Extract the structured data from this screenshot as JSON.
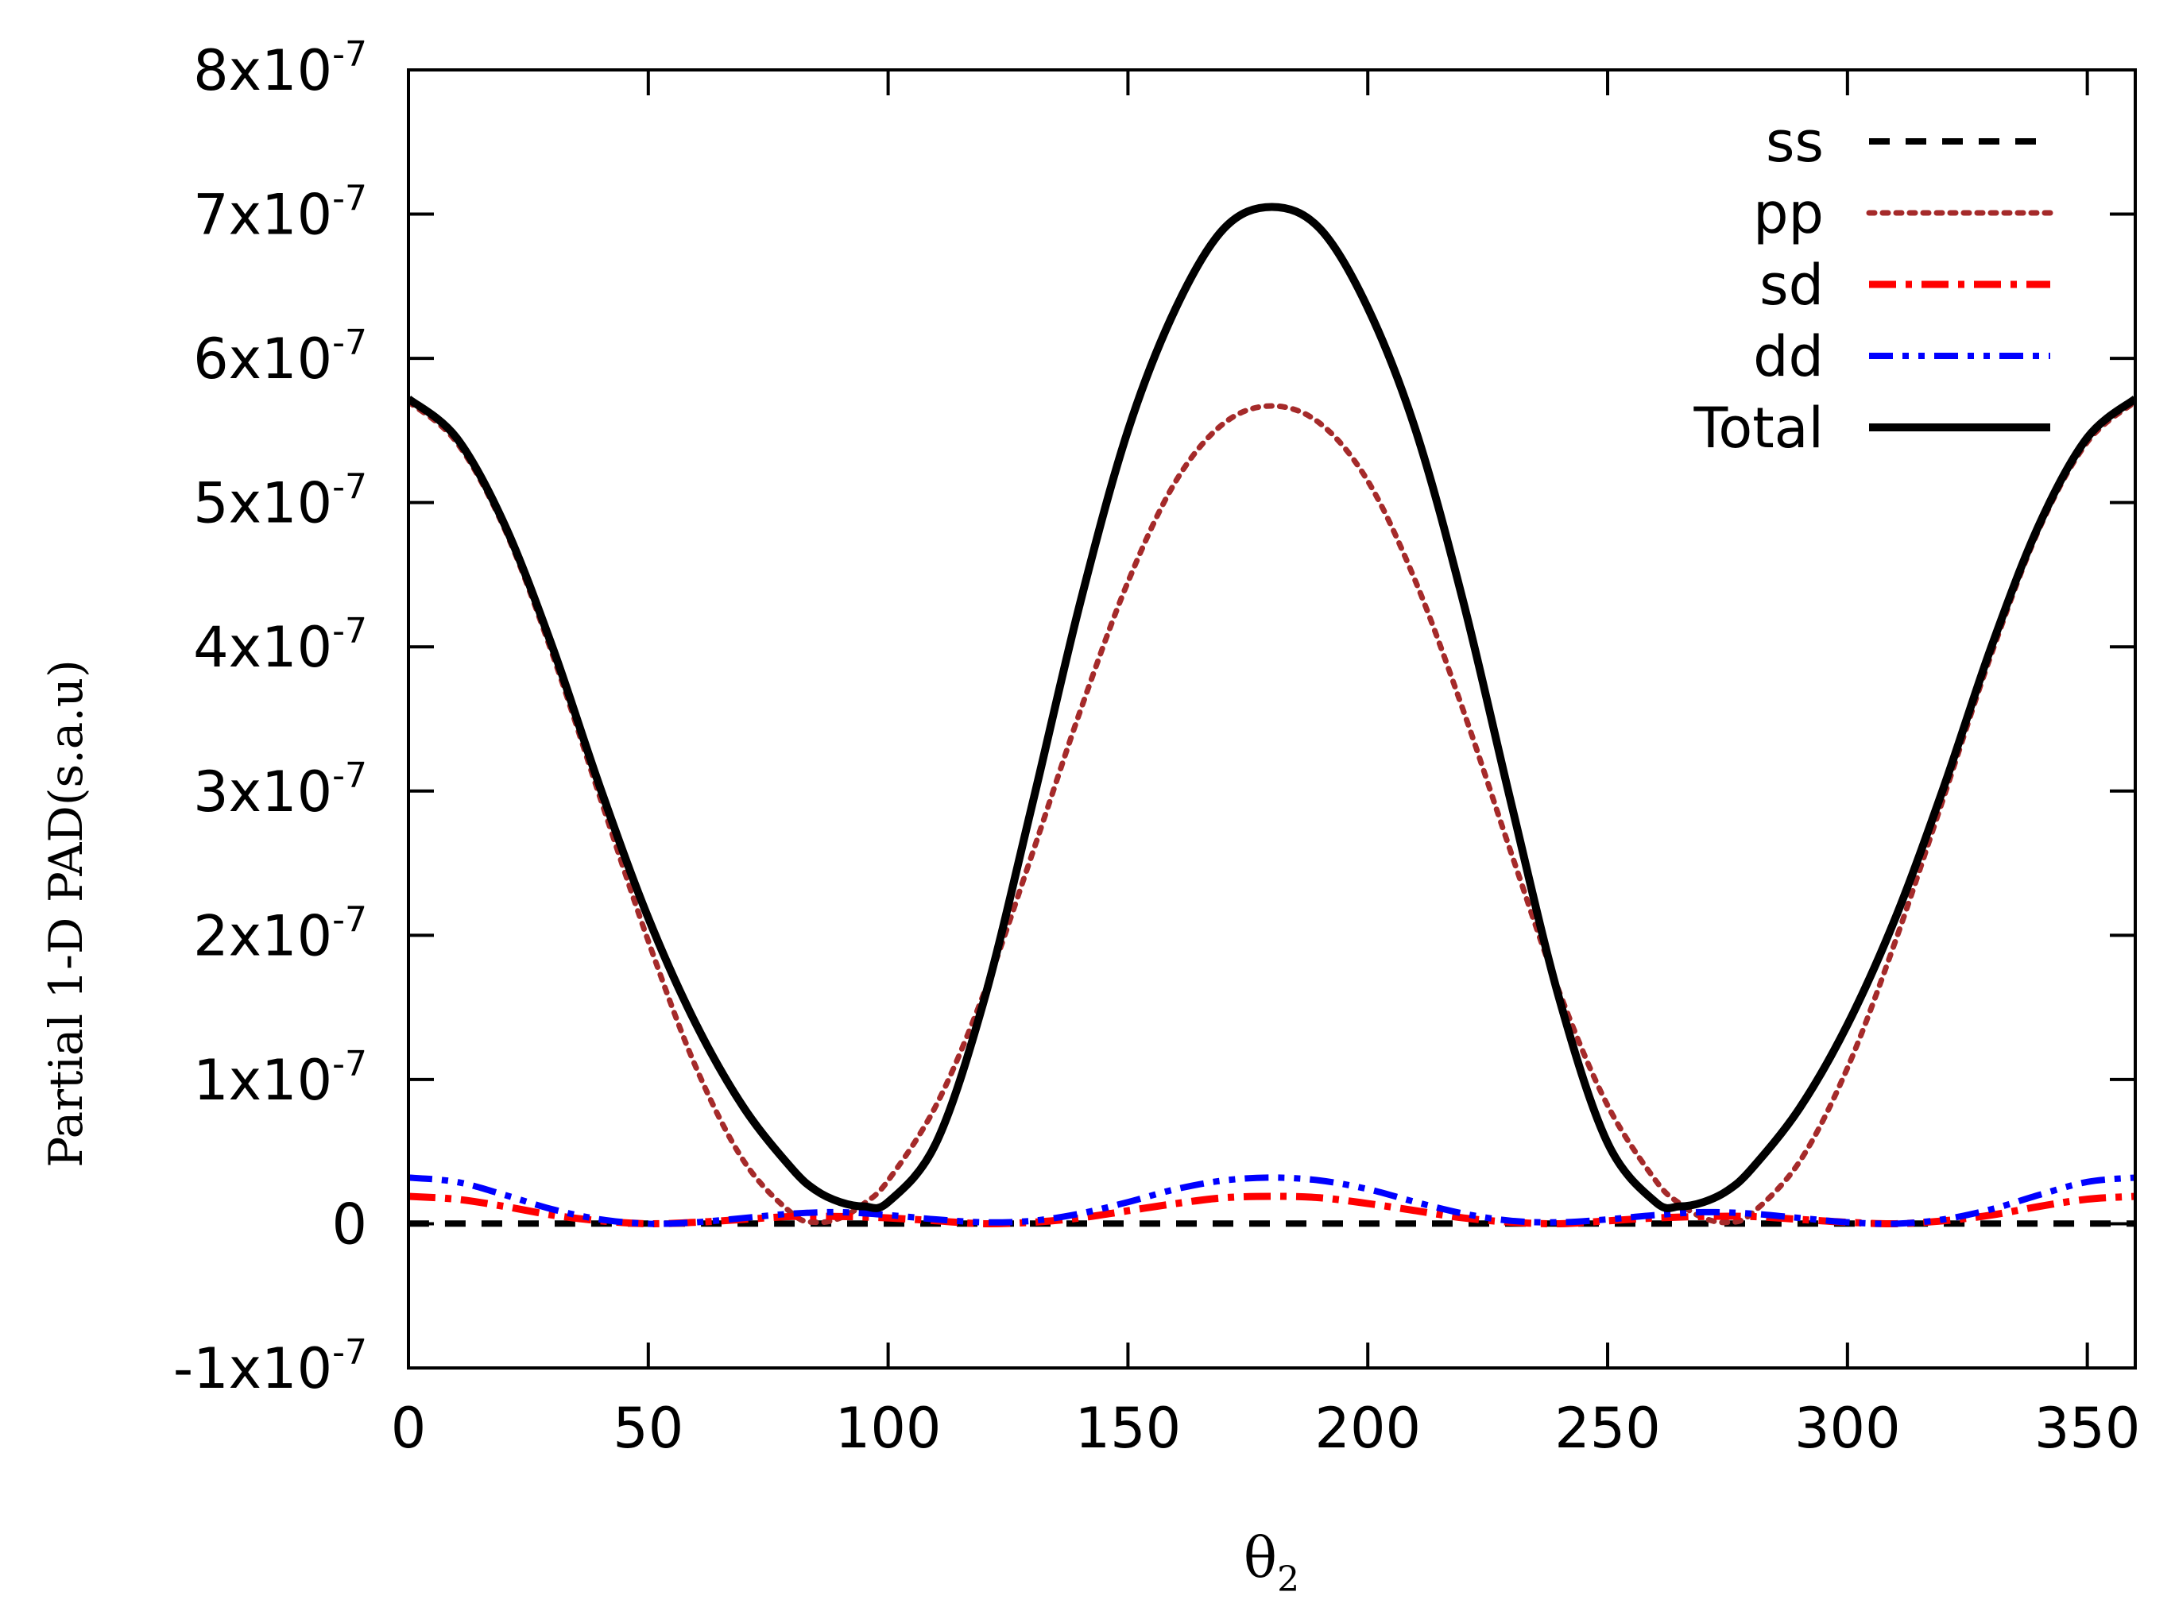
{
  "chart_data": {
    "type": "line",
    "title": "",
    "xlabel": "θ",
    "xlabel_subscript": "2",
    "ylabel": "Partial 1-D PAD(s.a.u)",
    "xlim": [
      0,
      360
    ],
    "ylim": [
      -1e-07,
      8e-07
    ],
    "x_ticks": [
      0,
      50,
      100,
      150,
      200,
      250,
      300,
      350
    ],
    "x_tick_labels": [
      "0",
      "50",
      "100",
      "150",
      "200",
      "250",
      "300",
      "350"
    ],
    "y_ticks": [
      -1e-07,
      0,
      1e-07,
      2e-07,
      3e-07,
      4e-07,
      5e-07,
      6e-07,
      7e-07,
      8e-07
    ],
    "y_tick_labels": [
      {
        "mantissa": "-1x10",
        "exp": "-7"
      },
      {
        "mantissa": "0",
        "exp": ""
      },
      {
        "mantissa": "1x10",
        "exp": "-7"
      },
      {
        "mantissa": "2x10",
        "exp": "-7"
      },
      {
        "mantissa": "3x10",
        "exp": "-7"
      },
      {
        "mantissa": "4x10",
        "exp": "-7"
      },
      {
        "mantissa": "5x10",
        "exp": "-7"
      },
      {
        "mantissa": "6x10",
        "exp": "-7"
      },
      {
        "mantissa": "7x10",
        "exp": "-7"
      },
      {
        "mantissa": "8x10",
        "exp": "-7"
      }
    ],
    "grid": false,
    "legend_position": "top-right",
    "series": [
      {
        "name": "ss",
        "color": "#000000",
        "style": "dashed",
        "x": [
          0,
          90,
          180,
          270,
          360
        ],
        "y": [
          1e-10,
          1e-10,
          1e-10,
          1e-10,
          1e-10
        ]
      },
      {
        "name": "pp",
        "color": "#a52a2a",
        "style": "dotted",
        "x": [
          0,
          10,
          20,
          30,
          40,
          50,
          60,
          70,
          80,
          85,
          90,
          95,
          100,
          110,
          120,
          130,
          140,
          150,
          160,
          170,
          180,
          190,
          200,
          210,
          220,
          230,
          240,
          250,
          260,
          265,
          270,
          275,
          280,
          290,
          300,
          310,
          320,
          330,
          340,
          350,
          360
        ],
        "y": [
          5.7e-07,
          5.42e-07,
          4.82e-07,
          3.95e-07,
          2.95e-07,
          1.96e-07,
          1.08e-07,
          4.3e-08,
          7e-09,
          1e-09,
          4e-09,
          1.4e-08,
          3e-08,
          8.2e-08,
          1.6e-07,
          2.56e-07,
          3.55e-07,
          4.45e-07,
          5.15e-07,
          5.55e-07,
          5.67e-07,
          5.55e-07,
          5.15e-07,
          4.45e-07,
          3.55e-07,
          2.56e-07,
          1.6e-07,
          8.2e-08,
          3e-08,
          1.4e-08,
          4e-09,
          1e-09,
          7e-09,
          4.3e-08,
          1.08e-07,
          1.96e-07,
          2.95e-07,
          3.95e-07,
          4.82e-07,
          5.42e-07,
          5.7e-07
        ]
      },
      {
        "name": "sd",
        "color": "#ff0000",
        "style": "dashdot",
        "x": [
          0,
          10,
          20,
          30,
          40,
          50,
          60,
          70,
          80,
          90,
          100,
          110,
          120,
          130,
          140,
          150,
          160,
          170,
          180,
          190,
          200,
          210,
          220,
          230,
          240,
          250,
          260,
          270,
          280,
          290,
          300,
          310,
          320,
          330,
          340,
          350,
          360
        ],
        "y": [
          1.9e-08,
          1.7e-08,
          1.2e-08,
          6e-09,
          2e-09,
          0,
          1e-09,
          3e-09,
          5e-09,
          5e-09,
          4e-09,
          2e-09,
          0,
          1e-09,
          4e-09,
          9e-09,
          1.4e-08,
          1.8e-08,
          1.9e-08,
          1.8e-08,
          1.4e-08,
          9e-09,
          4e-09,
          1e-09,
          0,
          2e-09,
          4e-09,
          5e-09,
          5e-09,
          3e-09,
          1e-09,
          0,
          2e-09,
          6e-09,
          1.2e-08,
          1.7e-08,
          1.9e-08
        ]
      },
      {
        "name": "dd",
        "color": "#0000ff",
        "style": "dashdotdot",
        "x": [
          0,
          10,
          20,
          30,
          40,
          50,
          60,
          70,
          80,
          90,
          100,
          110,
          120,
          130,
          140,
          150,
          160,
          170,
          180,
          190,
          200,
          210,
          220,
          230,
          240,
          250,
          260,
          270,
          280,
          290,
          300,
          310,
          320,
          330,
          340,
          350,
          360
        ],
        "y": [
          3.2e-08,
          2.9e-08,
          2e-08,
          1e-08,
          3e-09,
          0,
          1e-09,
          4e-09,
          7e-09,
          8e-09,
          6e-09,
          3e-09,
          1e-09,
          2e-09,
          7e-09,
          1.5e-08,
          2.4e-08,
          3e-08,
          3.2e-08,
          3e-08,
          2.4e-08,
          1.5e-08,
          7e-09,
          2e-09,
          1e-09,
          3e-09,
          6e-09,
          8e-09,
          7e-09,
          4e-09,
          1e-09,
          0,
          3e-09,
          1e-08,
          2e-08,
          2.9e-08,
          3.2e-08
        ]
      },
      {
        "name": "Total",
        "color": "#000000",
        "style": "solid",
        "x": [
          0,
          10,
          20,
          30,
          40,
          50,
          60,
          70,
          80,
          85,
          90,
          95,
          100,
          110,
          120,
          130,
          140,
          150,
          160,
          170,
          180,
          190,
          200,
          210,
          220,
          230,
          240,
          250,
          260,
          265,
          270,
          275,
          280,
          290,
          300,
          310,
          320,
          330,
          340,
          350,
          360
        ],
        "y": [
          5.72e-07,
          5.45e-07,
          4.85e-07,
          4e-07,
          3.02e-07,
          2.12e-07,
          1.38e-07,
          8e-08,
          3.8e-08,
          2.3e-08,
          1.5e-08,
          1.2e-08,
          1.5e-08,
          5.6e-08,
          1.55e-07,
          2.9e-07,
          4.3e-07,
          5.5e-07,
          6.35e-07,
          6.9e-07,
          7.05e-07,
          6.9e-07,
          6.35e-07,
          5.5e-07,
          4.3e-07,
          2.9e-07,
          1.55e-07,
          5.6e-08,
          1.5e-08,
          1.2e-08,
          1.5e-08,
          2.3e-08,
          3.8e-08,
          8e-08,
          1.38e-07,
          2.12e-07,
          3.02e-07,
          4e-07,
          4.85e-07,
          5.45e-07,
          5.72e-07
        ]
      }
    ]
  }
}
